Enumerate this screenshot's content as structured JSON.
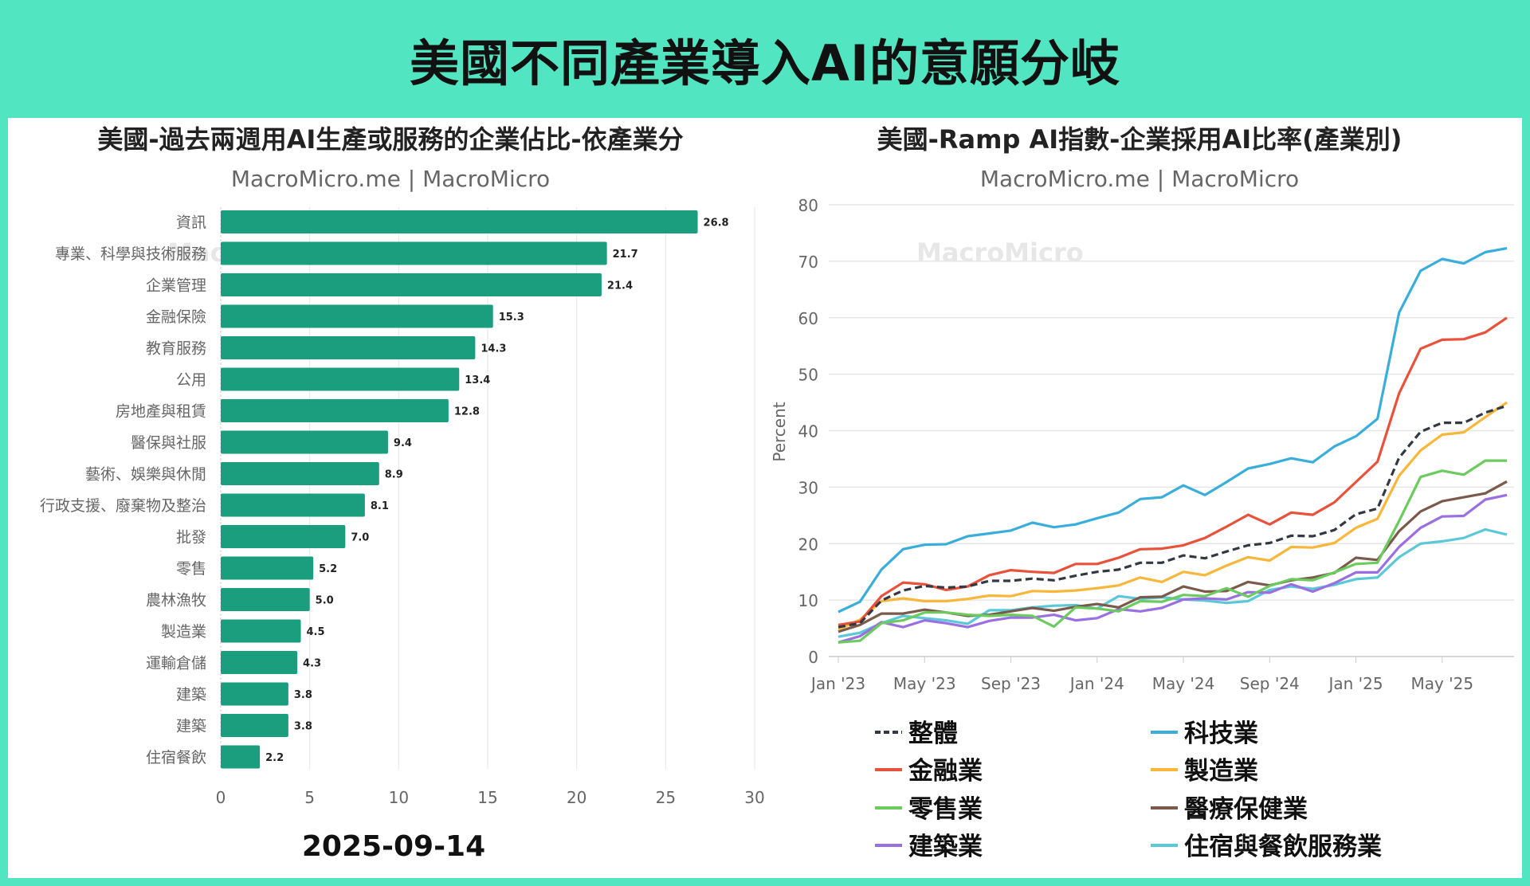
{
  "header": {
    "title": "美國不同產業導入AI的意願分岐"
  },
  "watermark": "MacroMicro",
  "colors": {
    "header_bg": "#52E5C1",
    "bar": "#1A9E7E"
  },
  "chart_data": [
    {
      "type": "bar",
      "orientation": "horizontal",
      "title": "美國-過去兩週用AI生產或服務的企業佔比-依產業分",
      "subtitle": "MacroMicro.me | MacroMicro",
      "categories": [
        "資訊",
        "專業、科學與技術服務",
        "企業管理",
        "金融保險",
        "教育服務",
        "公用",
        "房地產與租賃",
        "醫保與社服",
        "藝術、娛樂與休閒",
        "行政支援、廢棄物及整治",
        "批發",
        "零售",
        "農林漁牧",
        "製造業",
        "運輸倉儲",
        "建築",
        "建築",
        "住宿餐飲"
      ],
      "values": [
        26.8,
        21.7,
        21.4,
        15.3,
        14.3,
        13.4,
        12.8,
        9.4,
        8.9,
        8.1,
        7.0,
        5.2,
        5.0,
        4.5,
        4.3,
        3.8,
        3.8,
        2.2
      ],
      "value_labels": [
        "26.8",
        "21.7",
        "21.4",
        "15.3",
        "14.3",
        "13.4",
        "12.8",
        "9.4",
        "8.9",
        "8.1",
        "7.0",
        "5.2",
        "5.0",
        "4.5",
        "4.3",
        "3.8",
        "3.8",
        "2.2"
      ],
      "xlim": [
        0,
        30
      ],
      "xticks": [
        "0",
        "5",
        "10",
        "15",
        "20",
        "25",
        "30"
      ],
      "grid": true,
      "date_label": "2025-09-14",
      "color": "#1A9E7E"
    },
    {
      "type": "line",
      "title": "美國-Ramp AI指數-企業採用AI比率(產業別)",
      "subtitle": "MacroMicro.me | MacroMicro",
      "ylabel": "Percent",
      "ylim": [
        0,
        80
      ],
      "yticks": [
        "0",
        "10",
        "20",
        "30",
        "40",
        "50",
        "60",
        "70",
        "80"
      ],
      "x_start": "2023-01",
      "x_end": "2025-08",
      "x_frequency": "monthly",
      "xticks": [
        "Jan '23",
        "May '23",
        "Sep '23",
        "Jan '24",
        "May '24",
        "Sep '24",
        "Jan '25",
        "May '25"
      ],
      "grid": true,
      "legend_position": "bottom",
      "series": [
        {
          "name": "整體",
          "color": "#333842",
          "dashed": true,
          "values": [
            5.2,
            5.9,
            9.9,
            11.7,
            12.5,
            12.2,
            12.4,
            13.4,
            13.4,
            13.8,
            13.5,
            14.3,
            15.0,
            15.4,
            16.6,
            16.6,
            17.9,
            17.4,
            18.6,
            19.7,
            20.1,
            21.4,
            21.3,
            22.4,
            25.2,
            26.2,
            35.2,
            39.8,
            41.4,
            41.4,
            43.2,
            44.4
          ]
        },
        {
          "name": "科技業",
          "color": "#3AAEDB",
          "values": [
            7.9,
            9.7,
            15.4,
            19.0,
            19.8,
            19.9,
            21.3,
            21.8,
            22.3,
            23.7,
            22.9,
            23.4,
            24.5,
            25.5,
            27.9,
            28.2,
            30.3,
            28.6,
            30.9,
            33.3,
            34.1,
            35.1,
            34.4,
            37.2,
            39.0,
            42.1,
            60.9,
            68.3,
            70.4,
            69.6,
            71.6,
            72.3
          ]
        },
        {
          "name": "金融業",
          "color": "#E8513A",
          "values": [
            5.6,
            6.2,
            10.7,
            13.1,
            12.8,
            11.8,
            12.4,
            14.4,
            15.3,
            15.0,
            14.8,
            16.4,
            16.4,
            17.5,
            19.0,
            19.1,
            19.7,
            21.0,
            23.0,
            25.1,
            23.4,
            25.5,
            25.1,
            27.3,
            30.9,
            34.5,
            46.6,
            54.5,
            56.1,
            56.2,
            57.4,
            60.0
          ]
        },
        {
          "name": "製造業",
          "color": "#F8B73A",
          "values": [
            4.8,
            6.5,
            9.8,
            10.3,
            9.8,
            9.8,
            10.2,
            10.8,
            10.7,
            11.6,
            11.5,
            11.7,
            12.1,
            12.6,
            14.0,
            13.2,
            15.0,
            14.4,
            16.1,
            17.6,
            17.0,
            19.4,
            19.3,
            20.1,
            22.8,
            24.4,
            32.0,
            36.5,
            39.3,
            39.7,
            42.4,
            45.0
          ]
        },
        {
          "name": "零售業",
          "color": "#6CCB5F",
          "values": [
            2.5,
            2.8,
            5.9,
            6.4,
            7.8,
            7.8,
            7.4,
            7.2,
            7.4,
            7.2,
            5.3,
            8.7,
            8.5,
            8.0,
            9.8,
            9.7,
            10.9,
            10.7,
            12.1,
            10.6,
            12.5,
            13.7,
            13.5,
            14.9,
            16.4,
            16.6,
            24.0,
            31.8,
            32.9,
            32.2,
            34.7,
            34.7
          ]
        },
        {
          "name": "醫療保健業",
          "color": "#7A5A4A",
          "values": [
            4.4,
            5.6,
            7.6,
            7.6,
            8.3,
            7.8,
            7.2,
            7.4,
            8.0,
            8.6,
            8.1,
            8.8,
            9.3,
            8.7,
            10.5,
            10.6,
            12.4,
            11.5,
            11.6,
            13.2,
            12.6,
            13.5,
            14.0,
            14.8,
            17.5,
            17.1,
            22.2,
            25.7,
            27.5,
            28.2,
            28.9,
            31.0
          ]
        },
        {
          "name": "建築業",
          "color": "#9A6FE0",
          "values": [
            2.5,
            3.6,
            6.1,
            5.2,
            6.4,
            5.9,
            5.2,
            6.3,
            6.9,
            6.9,
            7.4,
            6.4,
            6.8,
            8.4,
            8.0,
            8.6,
            10.1,
            10.3,
            10.1,
            11.4,
            11.3,
            12.8,
            11.5,
            13.0,
            14.9,
            14.9,
            19.4,
            22.8,
            24.8,
            24.9,
            27.8,
            28.6
          ]
        },
        {
          "name": "住宿與餐飲服務業",
          "color": "#5BC8D8",
          "values": [
            3.5,
            4.2,
            5.9,
            7.2,
            6.8,
            6.4,
            5.8,
            8.2,
            8.2,
            8.7,
            9.0,
            9.1,
            8.5,
            10.7,
            10.2,
            10.5,
            10.1,
            9.9,
            9.5,
            9.8,
            11.8,
            12.4,
            12.0,
            12.7,
            13.7,
            14.0,
            17.6,
            20.0,
            20.4,
            21.0,
            22.5,
            21.6
          ]
        }
      ]
    }
  ]
}
